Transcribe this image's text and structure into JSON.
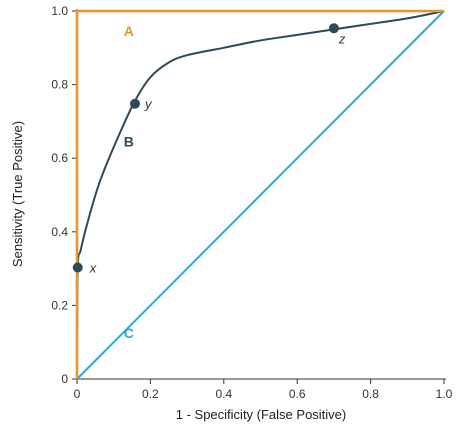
{
  "chart_data": {
    "type": "line",
    "xlabel": "1 - Specificity (False Positive)",
    "ylabel": "Sensitivity (True Positive)",
    "xlim": [
      0,
      1
    ],
    "ylim": [
      0,
      1
    ],
    "x_ticks": [
      "0",
      "0.2",
      "0.4",
      "0.6",
      "0.8",
      "1.0"
    ],
    "y_ticks": [
      "0",
      "0.2",
      "0.4",
      "0.6",
      "0.8",
      "1.0"
    ],
    "grid": false,
    "series": [
      {
        "name": "A",
        "color": "#E8962E",
        "points": [
          [
            0,
            0
          ],
          [
            0,
            1
          ],
          [
            1,
            1
          ]
        ]
      },
      {
        "name": "B",
        "color": "#2E4A5A",
        "points": [
          [
            0,
            0
          ],
          [
            0.002,
            0.3
          ],
          [
            0.01,
            0.35
          ],
          [
            0.03,
            0.43
          ],
          [
            0.06,
            0.53
          ],
          [
            0.1,
            0.63
          ],
          [
            0.155,
            0.75
          ],
          [
            0.2,
            0.82
          ],
          [
            0.25,
            0.86
          ],
          [
            0.3,
            0.88
          ],
          [
            0.4,
            0.9
          ],
          [
            0.5,
            0.92
          ],
          [
            0.6,
            0.935
          ],
          [
            0.7,
            0.95
          ],
          [
            0.8,
            0.965
          ],
          [
            0.9,
            0.98
          ],
          [
            1,
            1
          ]
        ]
      },
      {
        "name": "C",
        "color": "#2AA8DC",
        "points": [
          [
            0,
            0
          ],
          [
            1,
            1
          ]
        ]
      }
    ],
    "curve_label_positions": [
      {
        "label": "A",
        "x": 0.07,
        "y": 0.945
      },
      {
        "label": "B",
        "x": 0.07,
        "y": 0.645
      },
      {
        "label": "C",
        "x": 0.07,
        "y": 0.125
      }
    ],
    "highlighted_points": [
      {
        "label": "x",
        "x": 0.002,
        "y": 0.303,
        "color": "#2E4A5A"
      },
      {
        "label": "y",
        "x": 0.158,
        "y": 0.748,
        "color": "#2E4A5A"
      },
      {
        "label": "z",
        "x": 0.7,
        "y": 0.953,
        "color": "#2E4A5A"
      }
    ]
  }
}
